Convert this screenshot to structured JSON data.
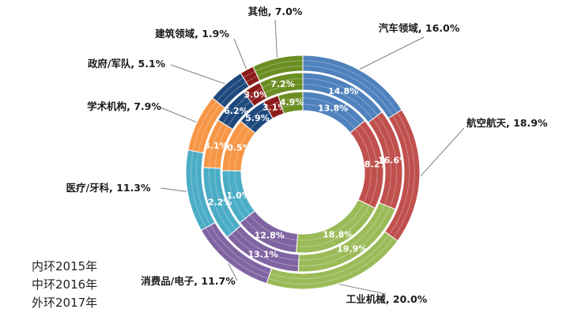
{
  "legend": {
    "inner": "内环2015年",
    "middle": "中环2016年",
    "outer": "外环2017年"
  },
  "chart_data": {
    "type": "donut",
    "title": "",
    "rings": [
      "2015",
      "2016",
      "2017"
    ],
    "categories": [
      {
        "name": "汽车领域",
        "color": "#4F81BD",
        "values": {
          "2015": 13.8,
          "2016": 14.8,
          "2017": 16.0
        },
        "label": "汽车领域, 16.0%"
      },
      {
        "name": "航空航天",
        "color": "#C0504D",
        "values": {
          "2015": 18.2,
          "2016": 16.6,
          "2017": 18.9
        },
        "label": "航空航天, 18.9%"
      },
      {
        "name": "工业机械",
        "color": "#9BBB59",
        "values": {
          "2015": 18.8,
          "2016": 19.9,
          "2017": 20.0
        },
        "label": "工业机械, 20.0%"
      },
      {
        "name": "消费品/电子",
        "color": "#8064A2",
        "values": {
          "2015": 12.8,
          "2016": 13.1,
          "2017": 11.7
        },
        "label": "消费品/电子, 11.7%"
      },
      {
        "name": "医疗/牙科",
        "color": "#4BACC6",
        "values": {
          "2015": 11.0,
          "2016": 12.2,
          "2017": 11.3
        },
        "label": "医疗/牙科, 11.3%"
      },
      {
        "name": "学术机构",
        "color": "#F79646",
        "values": {
          "2015": 10.5,
          "2016": 8.1,
          "2017": 7.9
        },
        "label": "学术机构, 7.9%"
      },
      {
        "name": "政府/军队",
        "color": "#1F497D",
        "values": {
          "2015": 5.9,
          "2016": 6.2,
          "2017": 5.1
        },
        "label": "政府/军队, 5.1%"
      },
      {
        "name": "建筑领域",
        "color": "#8B1A1A",
        "values": {
          "2015": 3.1,
          "2016": 3.0,
          "2017": 1.9
        },
        "label": "建筑领域, 1.9%"
      },
      {
        "name": "其他",
        "color": "#6B8E23",
        "values": {
          "2015": 4.9,
          "2016": 7.2,
          "2017": 7.0
        },
        "label": "其他, 7.0%"
      }
    ]
  }
}
